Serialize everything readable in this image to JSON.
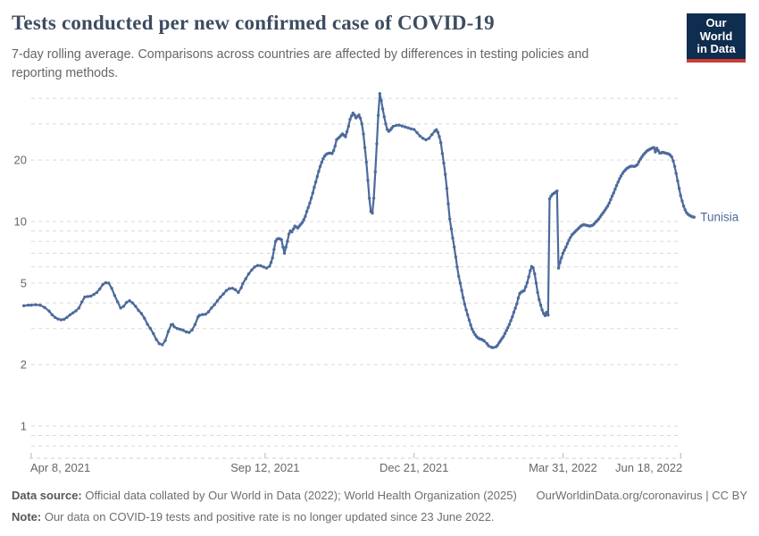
{
  "header": {
    "logo": {
      "line1": "Our World",
      "line2": "in Data",
      "navy": "#0f2d4e",
      "red": "#cc3b33"
    }
  },
  "footer": {
    "datasource_label": "Data source:",
    "datasource_text": " Official data collated by Our World in Data (2022); World Health Organization (2025)",
    "link_text": "OurWorldinData.org/coronavirus",
    "divider": " | ",
    "license": "CC BY",
    "note_label": "Note:",
    "note_text": " Our data on COVID-19 tests and positive rate is no longer updated since 23 June 2022."
  },
  "chart_data": {
    "type": "line",
    "title": "Tests conducted per new confirmed case of COVID-19",
    "subtitle": "7-day rolling average. Comparisons across countries are affected by differences in testing policies and reporting methods.",
    "scale": "log",
    "ylim": [
      0.7,
      45
    ],
    "grid": "dashed",
    "legend_position": "end-of-line-label",
    "series_label": "Tunisia",
    "line_color": "#4c6a9c",
    "axis_text_color": "#666666",
    "grid_color": "#d9d9d9",
    "y_axis": {
      "labeled_ticks": [
        1,
        2,
        5,
        10,
        20
      ],
      "minor_gridlines": [
        0.8,
        0.9,
        3,
        4,
        6,
        7,
        8,
        9,
        30,
        40
      ],
      "baseline_value": 0.7
    },
    "x_axis": {
      "ticks": [
        {
          "label": "Apr 8, 2021",
          "day": 0,
          "align": "start"
        },
        {
          "label": "Sep 12, 2021",
          "day": 157,
          "align": "middle"
        },
        {
          "label": "Dec 21, 2021",
          "day": 257,
          "align": "middle"
        },
        {
          "label": "Mar 31, 2022",
          "day": 357,
          "align": "middle"
        },
        {
          "label": "Jun 18, 2022",
          "day": 436,
          "align": "end"
        }
      ]
    },
    "points": [
      [
        -5,
        3.88
      ],
      [
        -2,
        3.9
      ],
      [
        0,
        3.9
      ],
      [
        3,
        3.92
      ],
      [
        6,
        3.9
      ],
      [
        9,
        3.8
      ],
      [
        12,
        3.65
      ],
      [
        14,
        3.5
      ],
      [
        16,
        3.4
      ],
      [
        18,
        3.34
      ],
      [
        20,
        3.31
      ],
      [
        22,
        3.33
      ],
      [
        24,
        3.4
      ],
      [
        26,
        3.5
      ],
      [
        28,
        3.58
      ],
      [
        30,
        3.66
      ],
      [
        32,
        3.78
      ],
      [
        34,
        4.05
      ],
      [
        36,
        4.28
      ],
      [
        38,
        4.3
      ],
      [
        40,
        4.32
      ],
      [
        42,
        4.4
      ],
      [
        44,
        4.5
      ],
      [
        46,
        4.68
      ],
      [
        48,
        4.92
      ],
      [
        50,
        5.02
      ],
      [
        52,
        5.0
      ],
      [
        54,
        4.72
      ],
      [
        56,
        4.35
      ],
      [
        58,
        4.05
      ],
      [
        60,
        3.78
      ],
      [
        62,
        3.85
      ],
      [
        64,
        4.03
      ],
      [
        66,
        4.1
      ],
      [
        68,
        4.0
      ],
      [
        70,
        3.85
      ],
      [
        72,
        3.68
      ],
      [
        74,
        3.55
      ],
      [
        76,
        3.37
      ],
      [
        78,
        3.15
      ],
      [
        80,
        3.0
      ],
      [
        82,
        2.83
      ],
      [
        84,
        2.65
      ],
      [
        86,
        2.53
      ],
      [
        88,
        2.5
      ],
      [
        90,
        2.62
      ],
      [
        92,
        2.9
      ],
      [
        94,
        3.13
      ],
      [
        95,
        3.14
      ],
      [
        96,
        3.06
      ],
      [
        98,
        3.0
      ],
      [
        100,
        2.97
      ],
      [
        102,
        2.94
      ],
      [
        104,
        2.89
      ],
      [
        106,
        2.87
      ],
      [
        108,
        2.95
      ],
      [
        110,
        3.14
      ],
      [
        112,
        3.42
      ],
      [
        113,
        3.48
      ],
      [
        115,
        3.51
      ],
      [
        117,
        3.52
      ],
      [
        119,
        3.62
      ],
      [
        121,
        3.78
      ],
      [
        123,
        3.92
      ],
      [
        125,
        4.1
      ],
      [
        127,
        4.27
      ],
      [
        129,
        4.43
      ],
      [
        131,
        4.6
      ],
      [
        133,
        4.7
      ],
      [
        135,
        4.72
      ],
      [
        137,
        4.65
      ],
      [
        139,
        4.5
      ],
      [
        141,
        4.75
      ],
      [
        142,
        4.97
      ],
      [
        144,
        5.25
      ],
      [
        146,
        5.55
      ],
      [
        148,
        5.8
      ],
      [
        150,
        6.0
      ],
      [
        152,
        6.1
      ],
      [
        154,
        6.08
      ],
      [
        156,
        6.0
      ],
      [
        158,
        5.92
      ],
      [
        160,
        6.05
      ],
      [
        161,
        6.3
      ],
      [
        162,
        6.65
      ],
      [
        163,
        7.3
      ],
      [
        164,
        8.0
      ],
      [
        165,
        8.2
      ],
      [
        166,
        8.25
      ],
      [
        167,
        8.22
      ],
      [
        168,
        8.15
      ],
      [
        169,
        7.5
      ],
      [
        170,
        7.0
      ],
      [
        171,
        7.5
      ],
      [
        172,
        8.0
      ],
      [
        173,
        8.7
      ],
      [
        174,
        9.0
      ],
      [
        175,
        8.9
      ],
      [
        176,
        9.2
      ],
      [
        177,
        9.5
      ],
      [
        178,
        9.4
      ],
      [
        179,
        9.3
      ],
      [
        180,
        9.5
      ],
      [
        181,
        9.7
      ],
      [
        182,
        9.9
      ],
      [
        183,
        10.2
      ],
      [
        184,
        10.6
      ],
      [
        185,
        11.2
      ],
      [
        186,
        11.7
      ],
      [
        187,
        12.3
      ],
      [
        188,
        13.0
      ],
      [
        189,
        13.8
      ],
      [
        190,
        14.7
      ],
      [
        191,
        15.6
      ],
      [
        192,
        16.6
      ],
      [
        193,
        17.6
      ],
      [
        194,
        18.6
      ],
      [
        195,
        19.5
      ],
      [
        196,
        20.3
      ],
      [
        197,
        20.9
      ],
      [
        198,
        21.3
      ],
      [
        199,
        21.5
      ],
      [
        200,
        21.6
      ],
      [
        201,
        21.6
      ],
      [
        202,
        21.5
      ],
      [
        203,
        22.2
      ],
      [
        204,
        23.4
      ],
      [
        205,
        25.1
      ],
      [
        206,
        25.5
      ],
      [
        207,
        25.9
      ],
      [
        208,
        26.4
      ],
      [
        209,
        26.8
      ],
      [
        210,
        26.4
      ],
      [
        211,
        26.0
      ],
      [
        212,
        27.5
      ],
      [
        213,
        29.2
      ],
      [
        214,
        31.6
      ],
      [
        215,
        32.8
      ],
      [
        216,
        33.9
      ],
      [
        217,
        33.2
      ],
      [
        218,
        32.1
      ],
      [
        219,
        32.6
      ],
      [
        220,
        33.2
      ],
      [
        221,
        32.0
      ],
      [
        222,
        30.0
      ],
      [
        223,
        26.8
      ],
      [
        224,
        23.0
      ],
      [
        225,
        19.5
      ],
      [
        226,
        15.9
      ],
      [
        227,
        13.0
      ],
      [
        228,
        11.2
      ],
      [
        229,
        11.0
      ],
      [
        230,
        13.0
      ],
      [
        231,
        17.5
      ],
      [
        232,
        24.0
      ],
      [
        233,
        33.0
      ],
      [
        234,
        42.2
      ],
      [
        235,
        39.0
      ],
      [
        236,
        35.5
      ],
      [
        237,
        32.5
      ],
      [
        238,
        30.0
      ],
      [
        239,
        28.2
      ],
      [
        240,
        27.6
      ],
      [
        241,
        28.0
      ],
      [
        242,
        28.6
      ],
      [
        243,
        29.2
      ],
      [
        245,
        29.5
      ],
      [
        247,
        29.6
      ],
      [
        249,
        29.3
      ],
      [
        251,
        29.0
      ],
      [
        253,
        28.7
      ],
      [
        255,
        28.4
      ],
      [
        257,
        28.2
      ],
      [
        259,
        27.2
      ],
      [
        261,
        26.2
      ],
      [
        263,
        25.5
      ],
      [
        265,
        25.1
      ],
      [
        267,
        25.5
      ],
      [
        269,
        26.6
      ],
      [
        271,
        27.7
      ],
      [
        272,
        28.1
      ],
      [
        273,
        27.3
      ],
      [
        274,
        26.0
      ],
      [
        275,
        24.3
      ],
      [
        276,
        21.5
      ],
      [
        277,
        19.3
      ],
      [
        278,
        17.0
      ],
      [
        279,
        14.5
      ],
      [
        280,
        12.2
      ],
      [
        281,
        10.3
      ],
      [
        282,
        9.2
      ],
      [
        283,
        8.3
      ],
      [
        284,
        7.5
      ],
      [
        285,
        6.7
      ],
      [
        286,
        6.0
      ],
      [
        287,
        5.4
      ],
      [
        288,
        5.0
      ],
      [
        289,
        4.6
      ],
      [
        290,
        4.25
      ],
      [
        291,
        3.95
      ],
      [
        292,
        3.7
      ],
      [
        293,
        3.5
      ],
      [
        294,
        3.3
      ],
      [
        295,
        3.12
      ],
      [
        296,
        2.98
      ],
      [
        297,
        2.88
      ],
      [
        298,
        2.8
      ],
      [
        299,
        2.74
      ],
      [
        300,
        2.7
      ],
      [
        301,
        2.67
      ],
      [
        302,
        2.66
      ],
      [
        303,
        2.64
      ],
      [
        304,
        2.61
      ],
      [
        306,
        2.53
      ],
      [
        307,
        2.47
      ],
      [
        309,
        2.43
      ],
      [
        310,
        2.42
      ],
      [
        312,
        2.44
      ],
      [
        313,
        2.48
      ],
      [
        314,
        2.55
      ],
      [
        315,
        2.61
      ],
      [
        316,
        2.68
      ],
      [
        317,
        2.74
      ],
      [
        318,
        2.83
      ],
      [
        319,
        2.93
      ],
      [
        320,
        3.03
      ],
      [
        321,
        3.14
      ],
      [
        322,
        3.28
      ],
      [
        323,
        3.42
      ],
      [
        324,
        3.6
      ],
      [
        325,
        3.77
      ],
      [
        326,
        3.96
      ],
      [
        327,
        4.23
      ],
      [
        328,
        4.45
      ],
      [
        329,
        4.52
      ],
      [
        330,
        4.56
      ],
      [
        331,
        4.6
      ],
      [
        332,
        4.8
      ],
      [
        333,
        5.02
      ],
      [
        334,
        5.36
      ],
      [
        335,
        5.75
      ],
      [
        336,
        6.03
      ],
      [
        337,
        5.94
      ],
      [
        338,
        5.55
      ],
      [
        339,
        5.0
      ],
      [
        340,
        4.5
      ],
      [
        341,
        4.15
      ],
      [
        342,
        3.9
      ],
      [
        343,
        3.7
      ],
      [
        344,
        3.55
      ],
      [
        345,
        3.47
      ],
      [
        346,
        3.6
      ],
      [
        347,
        3.49
      ],
      [
        348,
        12.9
      ],
      [
        349,
        13.3
      ],
      [
        350,
        13.6
      ],
      [
        351,
        13.75
      ],
      [
        352,
        13.9
      ],
      [
        353,
        14.1
      ],
      [
        354,
        5.92
      ],
      [
        355,
        6.3
      ],
      [
        356,
        6.65
      ],
      [
        357,
        7.0
      ],
      [
        358,
        7.25
      ],
      [
        359,
        7.5
      ],
      [
        360,
        7.8
      ],
      [
        361,
        8.1
      ],
      [
        362,
        8.35
      ],
      [
        363,
        8.6
      ],
      [
        364,
        8.75
      ],
      [
        365,
        8.9
      ],
      [
        366,
        9.05
      ],
      [
        367,
        9.2
      ],
      [
        368,
        9.35
      ],
      [
        369,
        9.5
      ],
      [
        370,
        9.6
      ],
      [
        371,
        9.65
      ],
      [
        372,
        9.62
      ],
      [
        373,
        9.58
      ],
      [
        374,
        9.54
      ],
      [
        375,
        9.5
      ],
      [
        376,
        9.55
      ],
      [
        377,
        9.6
      ],
      [
        378,
        9.75
      ],
      [
        379,
        9.95
      ],
      [
        380,
        10.1
      ],
      [
        381,
        10.3
      ],
      [
        382,
        10.55
      ],
      [
        383,
        10.8
      ],
      [
        384,
        11.05
      ],
      [
        385,
        11.3
      ],
      [
        386,
        11.6
      ],
      [
        387,
        11.9
      ],
      [
        388,
        12.3
      ],
      [
        389,
        12.8
      ],
      [
        390,
        13.3
      ],
      [
        391,
        13.8
      ],
      [
        392,
        14.4
      ],
      [
        393,
        15.0
      ],
      [
        394,
        15.6
      ],
      [
        395,
        16.2
      ],
      [
        396,
        16.7
      ],
      [
        397,
        17.2
      ],
      [
        398,
        17.6
      ],
      [
        399,
        17.9
      ],
      [
        400,
        18.2
      ],
      [
        401,
        18.4
      ],
      [
        402,
        18.55
      ],
      [
        403,
        18.65
      ],
      [
        404,
        18.63
      ],
      [
        405,
        18.6
      ],
      [
        406,
        18.75
      ],
      [
        407,
        19.0
      ],
      [
        408,
        19.6
      ],
      [
        409,
        20.2
      ],
      [
        410,
        20.7
      ],
      [
        411,
        21.2
      ],
      [
        412,
        21.6
      ],
      [
        413,
        22.0
      ],
      [
        414,
        22.3
      ],
      [
        415,
        22.5
      ],
      [
        416,
        22.7
      ],
      [
        417,
        22.9
      ],
      [
        418,
        23.0
      ],
      [
        419,
        21.9
      ],
      [
        420,
        22.8
      ],
      [
        421,
        22.2
      ],
      [
        422,
        21.6
      ],
      [
        423,
        21.7
      ],
      [
        424,
        21.8
      ],
      [
        425,
        21.7
      ],
      [
        426,
        21.6
      ],
      [
        427,
        21.5
      ],
      [
        428,
        21.4
      ],
      [
        429,
        21.1
      ],
      [
        430,
        20.7
      ],
      [
        431,
        19.8
      ],
      [
        432,
        18.6
      ],
      [
        433,
        17.2
      ],
      [
        434,
        15.8
      ],
      [
        435,
        14.5
      ],
      [
        436,
        13.4
      ],
      [
        437,
        12.6
      ],
      [
        438,
        11.9
      ],
      [
        439,
        11.4
      ],
      [
        440,
        11.05
      ],
      [
        441,
        10.85
      ],
      [
        442,
        10.72
      ],
      [
        443,
        10.62
      ],
      [
        444,
        10.55
      ],
      [
        445,
        10.5
      ]
    ]
  }
}
